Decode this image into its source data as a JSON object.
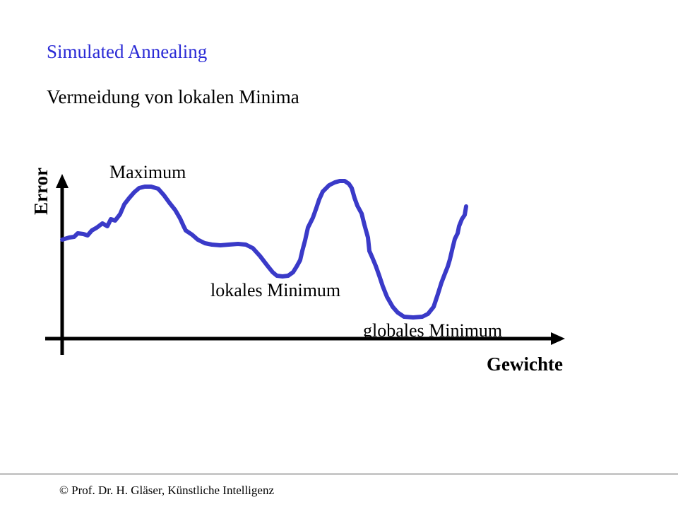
{
  "slide": {
    "title": "Simulated Annealing",
    "subtitle": "Vermeidung von lokalen Minima",
    "footer": "© Prof. Dr. H. Gläser, Künstliche Intelligenz"
  },
  "diagram": {
    "y_axis_label": "Error",
    "x_axis_label": "Gewichte",
    "annotations": {
      "maximum": "Maximum",
      "local_minimum": "lokales Minimum",
      "global_minimum": "globales Minimum"
    },
    "colors": {
      "curve": "#3a3ac8",
      "axes": "#000000",
      "title": "#2a2ad6"
    }
  }
}
